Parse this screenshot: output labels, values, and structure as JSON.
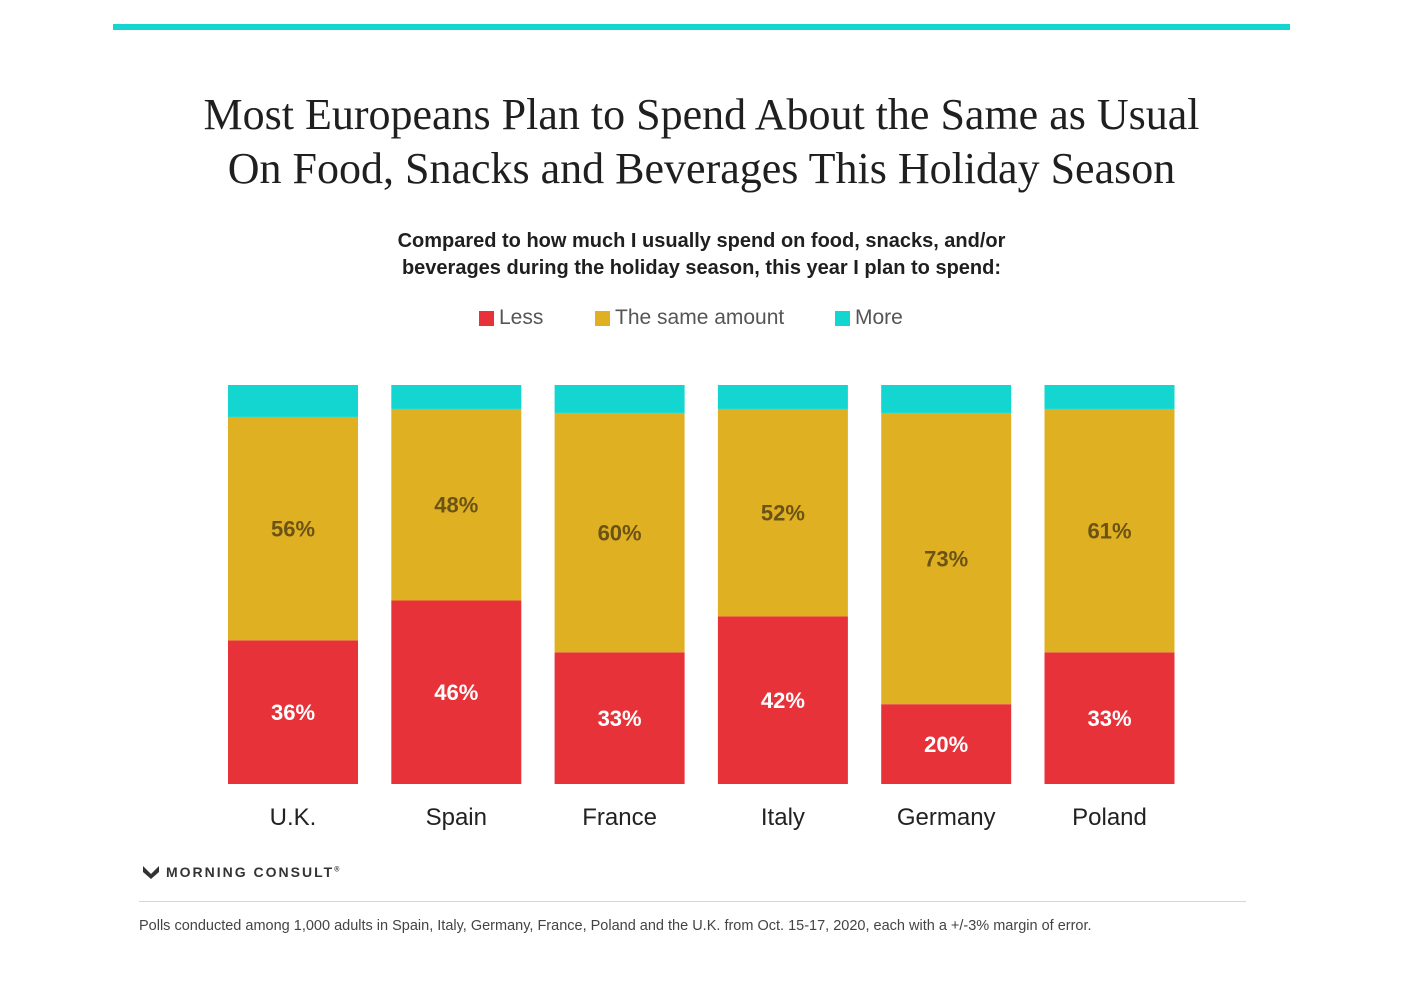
{
  "title_lines": [
    "Most Europeans Plan to Spend About the Same as Usual",
    "On Food, Snacks and Beverages This Holiday Season"
  ],
  "subtitle_lines": [
    "Compared to how much I usually spend on food, snacks, and/or",
    "beverages during the holiday season, this year I plan to spend:"
  ],
  "legend": {
    "less": "Less",
    "same": "The same amount",
    "more": "More"
  },
  "colors": {
    "accent_bar": "#12d6cf",
    "less": "#e8323a",
    "same": "#e0b023",
    "more": "#12d6cf",
    "same_label": "#6b5314",
    "less_label": "#ffffff"
  },
  "chart_data": {
    "type": "bar",
    "stacked": true,
    "categories": [
      "U.K.",
      "Spain",
      "France",
      "Italy",
      "Germany",
      "Poland"
    ],
    "series": [
      {
        "name": "Less",
        "values": [
          36,
          46,
          33,
          42,
          20,
          33
        ],
        "labels": [
          "36%",
          "46%",
          "33%",
          "42%",
          "20%",
          "33%"
        ]
      },
      {
        "name": "The same amount",
        "values": [
          56,
          48,
          60,
          52,
          73,
          61
        ],
        "labels": [
          "56%",
          "48%",
          "60%",
          "52%",
          "73%",
          "61%"
        ]
      },
      {
        "name": "More",
        "values": [
          8,
          6,
          7,
          6,
          7,
          6
        ]
      }
    ],
    "ylim": [
      0,
      100
    ],
    "legend_position": "top-center",
    "grid": false
  },
  "brand": {
    "name": "MORNING CONSULT",
    "mark": "®"
  },
  "footnote": "Polls conducted among 1,000 adults in Spain, Italy, Germany, France, Poland and the U.K. from Oct. 15-17, 2020, each with a +/-3% margin of error."
}
